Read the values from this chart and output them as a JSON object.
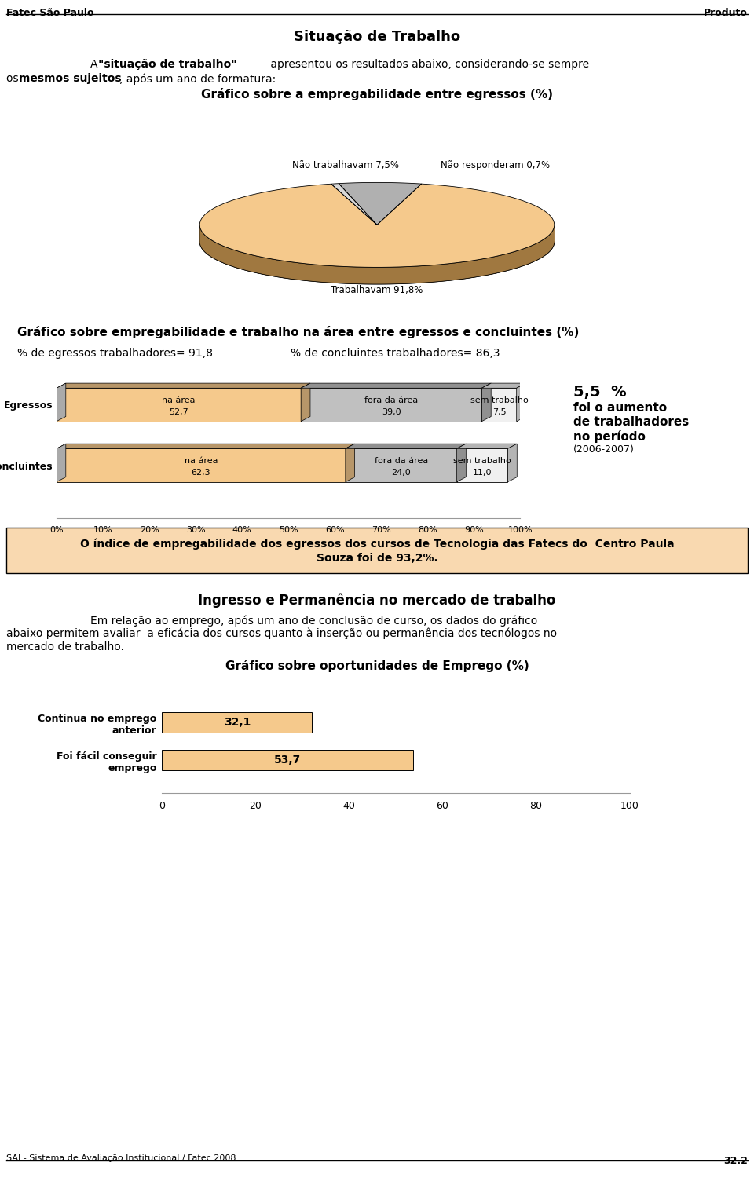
{
  "header_left": "Fatec São Paulo",
  "header_right": "Produto",
  "footer": "SAI - Sistema de Avaliação Institucional / Fatec 2008",
  "page_number": "32.2",
  "title_main": "Situação de Trabalho",
  "pie_chart_title": "Gráfico sobre a empregabilidade entre egressos (%)",
  "pie_values": [
    91.8,
    7.5,
    0.7
  ],
  "pie_labels": [
    "Trabalhavam 91,8%",
    "Não trabalhavam 7,5%",
    "Não responderam 0,7%"
  ],
  "pie_colors": [
    "#F5C98C",
    "#B0B0B0",
    "#D8D8D8"
  ],
  "pie_side_colors": [
    "#A07840",
    "#808080",
    "#A8A8A8"
  ],
  "bar_chart_title": "Gráfico sobre empregabilidade e trabalho na área entre egressos e concluintes (%)",
  "egr_stat": "% de egressos trabalhadores= 91,8",
  "conc_stat": "% de concluintes trabalhadores= 86,3",
  "bar_rows": [
    {
      "label": "Egressos",
      "segments": [
        {
          "top_label": "na área",
          "value_label": "52,7",
          "value": 52.7,
          "color": "#F5C98C"
        },
        {
          "top_label": "fora da área",
          "value_label": "39,0",
          "value": 39.0,
          "color": "#C0C0C0"
        },
        {
          "top_label": "sem trabalho",
          "value_label": "7,5",
          "value": 7.5,
          "color": "#F0F0F0"
        }
      ]
    },
    {
      "label": "Concluintes",
      "segments": [
        {
          "top_label": "na área",
          "value_label": "62,3",
          "value": 62.3,
          "color": "#F5C98C"
        },
        {
          "top_label": "fora da área",
          "value_label": "24,0",
          "value": 24.0,
          "color": "#C0C0C0"
        },
        {
          "top_label": "sem trabalho",
          "value_label": "11,0",
          "value": 11.0,
          "color": "#F0F0F0"
        }
      ]
    }
  ],
  "annotation_pct": "5,5  %",
  "annotation_lines": [
    "foi o aumento",
    "de trabalhadores",
    "no período",
    "(2006-2007)"
  ],
  "annotation_bold": [
    true,
    true,
    true,
    false
  ],
  "highlight_box_color": "#F9D9B0",
  "highlight_line1": "O índice de empregabilidade dos egressos dos cursos de Tecnologia das Fatecs do  Centro Paula",
  "highlight_line2": "Souza foi de 93,2%.",
  "section2_title": "Ingresso e Permanência no mercado de trabalho",
  "section2_para_lines": [
    "Em relação ao emprego, após um ano de conclusão de curso, os dados do gráfico",
    "abaixo permitem avaliar  a eficácia dos cursos quanto à inserção ou permanência dos tecnólogos no",
    "mercado de trabalho."
  ],
  "bar2_title": "Gráfico sobre oportunidades de Emprego (%)",
  "bar2_categories": [
    "Foi fácil conseguir\nemprego",
    "Continua no emprego\nanterior"
  ],
  "bar2_values": [
    32.1,
    53.7
  ],
  "bar2_color": "#F5C98C",
  "bar2_xticks": [
    0.0,
    20.0,
    40.0,
    60.0,
    80.0,
    100.0
  ]
}
